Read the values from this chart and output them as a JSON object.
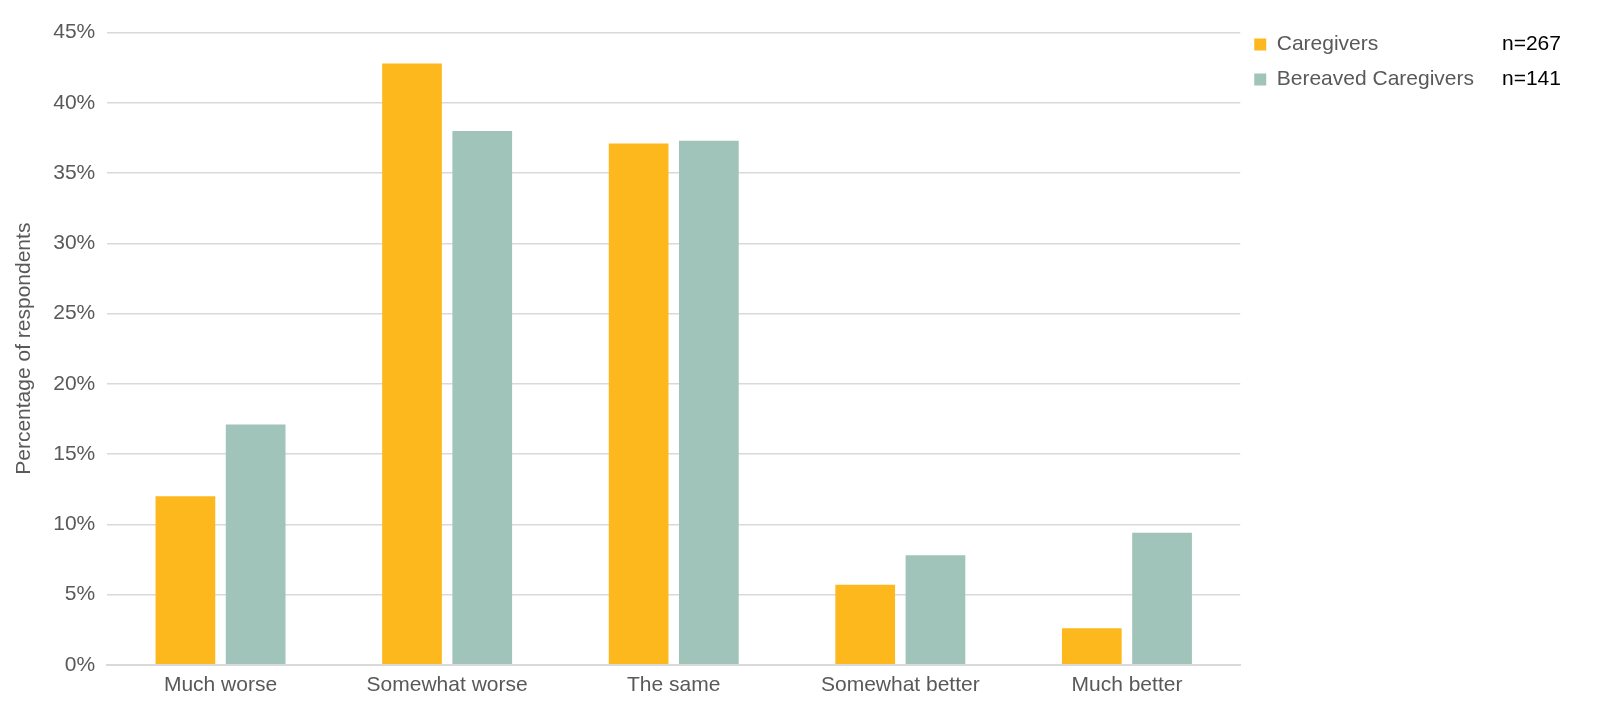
{
  "chart_data": {
    "type": "bar",
    "ylabel": "Percentage of respondents",
    "categories": [
      "Much worse",
      "Somewhat worse",
      "The same",
      "Somewhat better",
      "Much better"
    ],
    "series": [
      {
        "name": "Caregivers",
        "color": "#fdb81e",
        "values": [
          12.0,
          42.8,
          37.1,
          5.7,
          2.6
        ]
      },
      {
        "name": "Bereaved Caregivers",
        "color": "#a0c4b9",
        "values": [
          17.1,
          38.0,
          37.3,
          7.8,
          9.4
        ]
      }
    ],
    "ylim": [
      0,
      45
    ],
    "yticks": [
      {
        "value": 0,
        "label": "0%"
      },
      {
        "value": 5,
        "label": "5%"
      },
      {
        "value": 10,
        "label": "10%"
      },
      {
        "value": 15,
        "label": "15%"
      },
      {
        "value": 20,
        "label": "20%"
      },
      {
        "value": 25,
        "label": "25%"
      },
      {
        "value": 30,
        "label": "30%"
      },
      {
        "value": 35,
        "label": "35%"
      },
      {
        "value": 40,
        "label": "40%"
      },
      {
        "value": 45,
        "label": "45%"
      }
    ],
    "grid": "y",
    "legend": "top right",
    "annotations": [
      "n=267",
      "n=141"
    ]
  }
}
